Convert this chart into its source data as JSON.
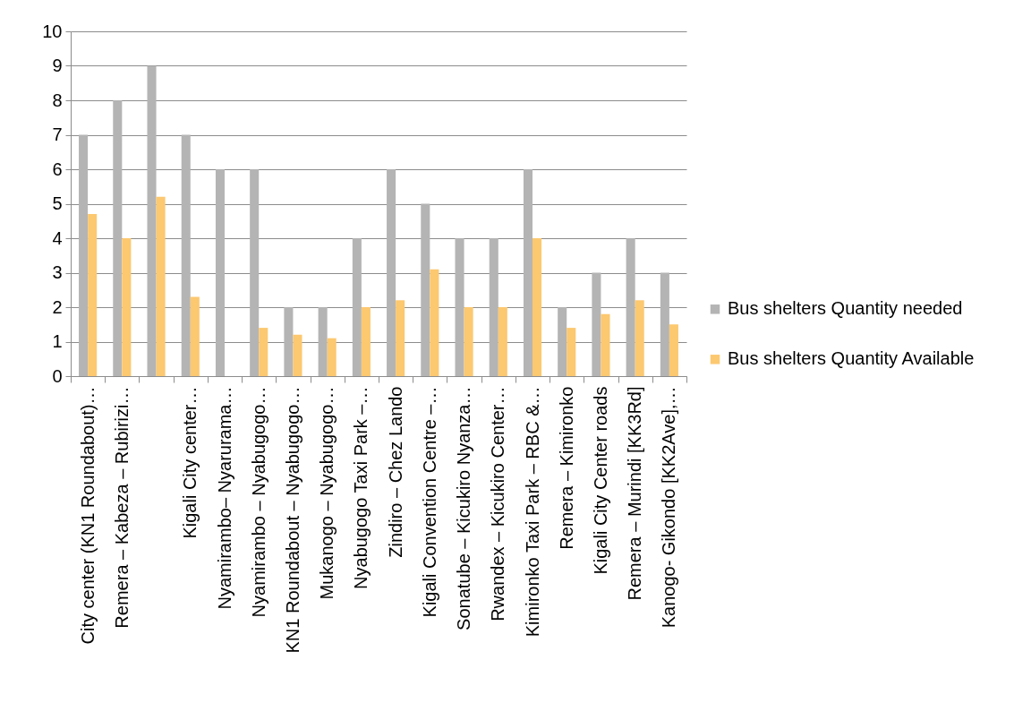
{
  "chart_data": {
    "type": "bar",
    "categories": [
      "City center (KN1 Roundabout)…",
      "Remera – Kabeza – Rubirizi…",
      null,
      "Kigali City center…",
      "Nyamirambo– Nyarurama…",
      "Nyamirambo – Nyabugogo…",
      "KN1 Roundabout – Nyabugogo…",
      "Mukanogo  – Nyabugogo…",
      "Nyabugogo Taxi Park –…",
      "Zindiro – Chez Lando",
      "Kigali Convention Centre –…",
      "Sonatube – Kicukiro Nyanza…",
      "Rwandex – Kicukiro Center…",
      "Kimironko Taxi Park – RBC &…",
      "Remera – Kimironko",
      "Kigali City Center roads",
      "Remera – Murindi [KK3Rd]",
      "Kanogo- Gikondo [KK2Ave],…"
    ],
    "series": [
      {
        "name": "Bus shelters Quantity needed",
        "color": "#b4b4b4",
        "values": [
          7,
          8,
          9,
          7,
          6,
          6,
          2,
          2,
          4,
          6,
          5,
          4,
          4,
          6,
          2,
          3,
          4,
          3
        ]
      },
      {
        "name": "Bus shelters Quantity Available",
        "color": "#fcc870",
        "values": [
          4.7,
          4,
          5.2,
          2.3,
          0,
          1.4,
          1.2,
          1.1,
          2,
          2.2,
          3.1,
          2,
          2,
          4,
          1.4,
          1.8,
          2.2,
          1.5
        ]
      }
    ],
    "ylim": [
      0,
      10
    ],
    "yticks": [
      0,
      1,
      2,
      3,
      4,
      5,
      6,
      7,
      8,
      9,
      10
    ],
    "grid": "y",
    "legend": "right"
  }
}
